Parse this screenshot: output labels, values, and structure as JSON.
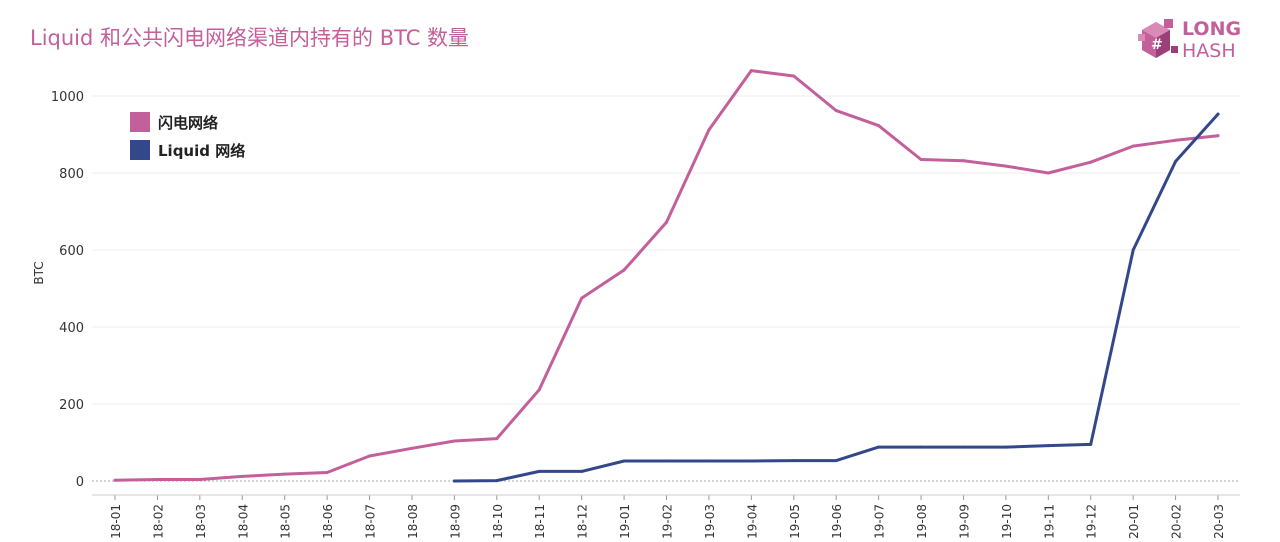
{
  "title": "Liquid 和公共闪电网络渠道内持有的 BTC 数量",
  "logo": {
    "line1": "LONG",
    "line2": "HASH"
  },
  "colors": {
    "title": "#c35f9a",
    "lightning": "#c35f9a",
    "liquid": "#32488a"
  },
  "chart_data": {
    "type": "line",
    "title": "Liquid 和公共闪电网络渠道内持有的 BTC 数量",
    "xlabel": "",
    "ylabel": "BTC",
    "ylim": [
      0,
      1000
    ],
    "yticks": [
      0,
      200,
      400,
      600,
      800,
      1000
    ],
    "categories": [
      "18-01",
      "18-02",
      "18-03",
      "18-04",
      "18-05",
      "18-06",
      "18-07",
      "18-08",
      "18-09",
      "18-10",
      "18-11",
      "18-12",
      "19-01",
      "19-02",
      "19-03",
      "19-04",
      "19-05",
      "19-06",
      "19-07",
      "19-08",
      "19-09",
      "19-10",
      "19-11",
      "19-12",
      "20-01",
      "20-02",
      "20-03"
    ],
    "legend_position": "top-left",
    "grid": "horizontal",
    "series": [
      {
        "name": "闪电网络",
        "color": "#c35f9a",
        "values": [
          2,
          4,
          4,
          12,
          18,
          22,
          65,
          85,
          104,
          110,
          237,
          475,
          548,
          672,
          912,
          1066,
          1052,
          962,
          923,
          835,
          832,
          818,
          800,
          828,
          870,
          885,
          897
        ]
      },
      {
        "name": "Liquid 网络",
        "color": "#32488a",
        "values": [
          null,
          null,
          null,
          null,
          null,
          null,
          null,
          null,
          0,
          1,
          25,
          25,
          52,
          52,
          52,
          52,
          53,
          53,
          88,
          88,
          88,
          88,
          92,
          95,
          600,
          830,
          953
        ]
      }
    ]
  }
}
